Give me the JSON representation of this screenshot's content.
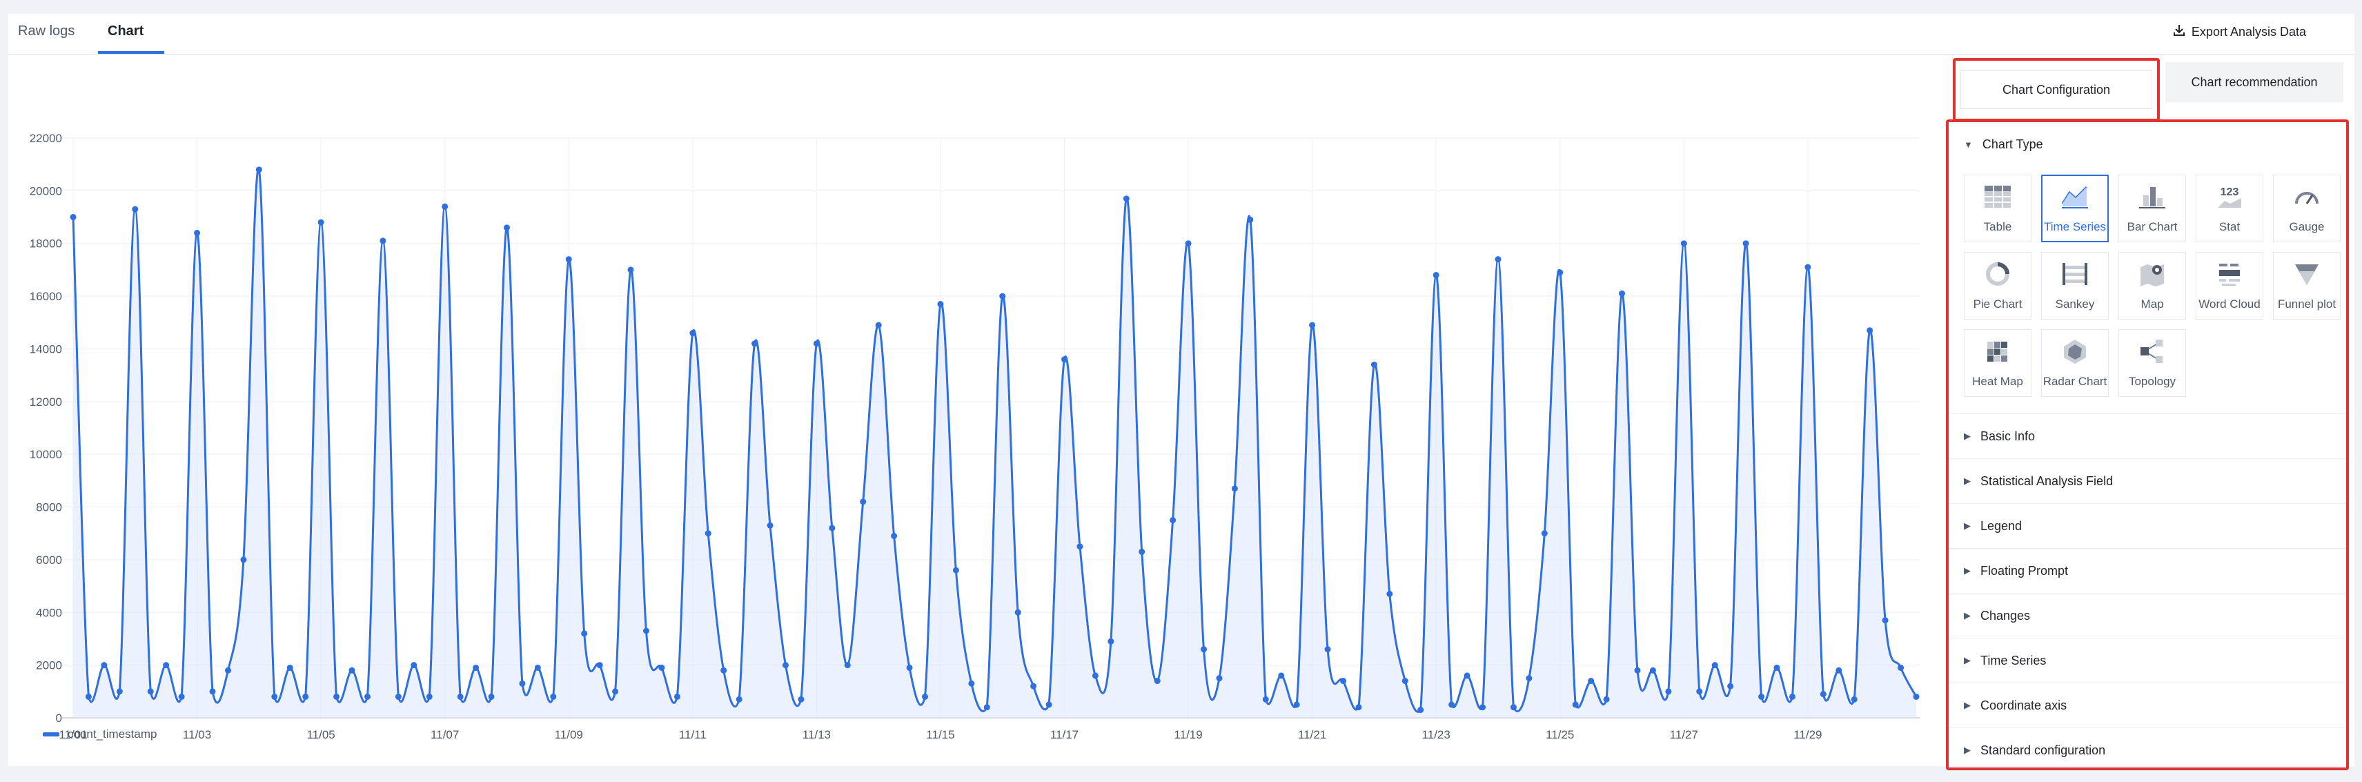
{
  "tabs": [
    {
      "label": "Raw logs",
      "active": false
    },
    {
      "label": "Chart",
      "active": true
    }
  ],
  "export_label": "Export Analysis Data",
  "panel": {
    "config_button": "Chart Configuration",
    "recommend_button": "Chart recommendation",
    "chart_type_title": "Chart Type",
    "chart_types": [
      {
        "label": "Table",
        "icon": "table-icon",
        "selected": false
      },
      {
        "label": "Time Series",
        "icon": "time-series-icon",
        "selected": true
      },
      {
        "label": "Bar Chart",
        "icon": "bar-chart-icon",
        "selected": false
      },
      {
        "label": "Stat",
        "icon": "stat-icon",
        "selected": false
      },
      {
        "label": "Gauge",
        "icon": "gauge-icon",
        "selected": false
      },
      {
        "label": "Pie Chart",
        "icon": "pie-chart-icon",
        "selected": false
      },
      {
        "label": "Sankey",
        "icon": "sankey-icon",
        "selected": false
      },
      {
        "label": "Map",
        "icon": "map-icon",
        "selected": false
      },
      {
        "label": "Word Cloud",
        "icon": "word-cloud-icon",
        "selected": false
      },
      {
        "label": "Funnel plot",
        "icon": "funnel-icon",
        "selected": false
      },
      {
        "label": "Heat Map",
        "icon": "heat-map-icon",
        "selected": false
      },
      {
        "label": "Radar Chart",
        "icon": "radar-chart-icon",
        "selected": false
      },
      {
        "label": "Topology",
        "icon": "topology-icon",
        "selected": false
      }
    ],
    "sections": [
      "Basic Info",
      "Statistical Analysis Field",
      "Legend",
      "Floating Prompt",
      "Changes",
      "Time Series",
      "Coordinate axis",
      "Standard configuration"
    ]
  },
  "colors": {
    "accent": "#2f6fde",
    "highlight": "#e03232"
  },
  "chart_data": {
    "type": "area",
    "x_ticks": [
      "11/01",
      "11/03",
      "11/05",
      "11/07",
      "11/09",
      "11/11",
      "11/13",
      "11/15",
      "11/17",
      "11/19",
      "11/21",
      "11/23",
      "11/25",
      "11/27",
      "11/29"
    ],
    "ylim": [
      0,
      22000
    ],
    "y_ticks": [
      "0",
      "2000",
      "4000",
      "6000",
      "8000",
      "10000",
      "12000",
      "14000",
      "16000",
      "18000",
      "20000",
      "22000"
    ],
    "grid": true,
    "legend_position": "bottom-left",
    "series": [
      {
        "name": "count_timestamp",
        "values": [
          19000,
          800,
          2000,
          1000,
          19300,
          1000,
          2000,
          800,
          18400,
          1000,
          1800,
          6000,
          20800,
          800,
          1900,
          800,
          18800,
          800,
          1800,
          800,
          18100,
          800,
          2000,
          800,
          19400,
          800,
          1900,
          800,
          18600,
          1300,
          1900,
          800,
          17400,
          3200,
          2000,
          1000,
          17000,
          3300,
          1900,
          800,
          14600,
          7000,
          1800,
          700,
          14200,
          7300,
          2000,
          700,
          14200,
          7200,
          2000,
          8200,
          14900,
          6900,
          1900,
          800,
          15700,
          5600,
          1300,
          400,
          16000,
          4000,
          1200,
          500,
          13600,
          6500,
          1600,
          2900,
          19700,
          6300,
          1400,
          7500,
          18000,
          2600,
          1500,
          8700,
          18900,
          700,
          1600,
          500,
          14900,
          2600,
          1400,
          400,
          13400,
          4700,
          1400,
          300,
          16800,
          500,
          1600,
          400,
          17400,
          400,
          1500,
          7000,
          16900,
          500,
          1400,
          700,
          16100,
          1800,
          1800,
          1000,
          18000,
          1000,
          2000,
          1200,
          18000,
          800,
          1900,
          800,
          17100,
          900,
          1800,
          700,
          14700,
          3700,
          1900,
          800
        ]
      }
    ]
  }
}
